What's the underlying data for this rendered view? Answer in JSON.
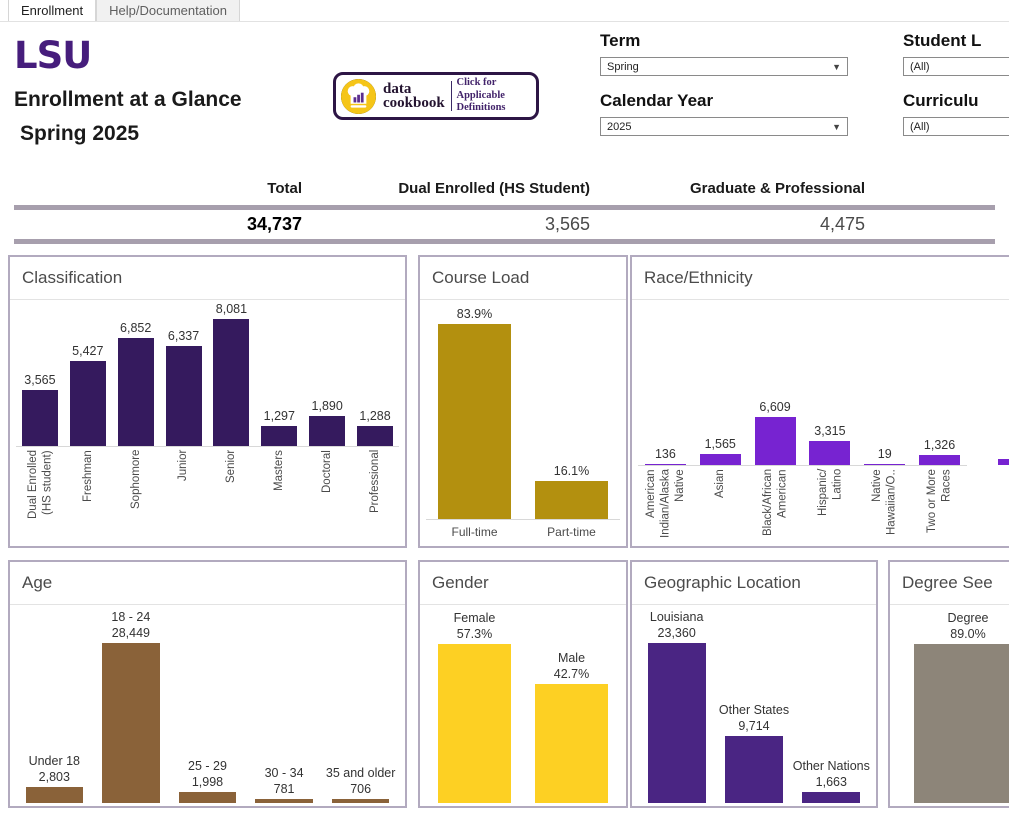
{
  "tabs": [
    {
      "label": "Enrollment",
      "active": true
    },
    {
      "label": "Help/Documentation",
      "active": false
    }
  ],
  "header": {
    "logo": "LSU",
    "title_line1": "Enrollment at a Glance",
    "title_line2": "Spring 2025",
    "cookbook_badge": {
      "brand": "data\ncookbook",
      "caption": "Click for Applicable\nDefinitions"
    }
  },
  "filters": [
    {
      "label": "Term",
      "value": "Spring"
    },
    {
      "label": "Calendar Year",
      "value": "2025"
    },
    {
      "label": "Student L",
      "value": "(All)"
    },
    {
      "label": "Curriculu",
      "value": "(All)"
    }
  ],
  "summary": {
    "columns": [
      {
        "header": "Total",
        "value": "34,737"
      },
      {
        "header": "Dual Enrolled (HS Student)",
        "value": "3,565"
      },
      {
        "header": "Graduate & Professional",
        "value": "4,475"
      }
    ]
  },
  "colors": {
    "lsu_purple": "#461D7C",
    "panel_border": "#b2aabf",
    "summary_rule": "#a79fad"
  },
  "chart_data": [
    {
      "id": "classification",
      "title": "Classification",
      "type": "bar",
      "bar_color": "#351A5E",
      "label_mode": "below-rotated",
      "ylim": [
        0,
        9290
      ],
      "legend": "none",
      "categories": [
        "Dual Enrolled\n(HS student)",
        "Freshman",
        "Sophomore",
        "Junior",
        "Senior",
        "Masters",
        "Doctoral",
        "Professional"
      ],
      "values": [
        3565,
        5427,
        6852,
        6337,
        8081,
        1297,
        1890,
        1288
      ],
      "value_labels": [
        "3,565",
        "5,427",
        "6,852",
        "6,337",
        "8,081",
        "1,297",
        "1,890",
        "1,288"
      ]
    },
    {
      "id": "course_load",
      "title": "Course Load",
      "type": "bar",
      "bar_color": "#B3900F",
      "label_mode": "below-flat",
      "ylim": [
        0,
        94
      ],
      "legend": "none",
      "categories": [
        "Full-time",
        "Part-time"
      ],
      "values": [
        83.9,
        16.1
      ],
      "value_labels": [
        "83.9%",
        "16.1%"
      ]
    },
    {
      "id": "race_ethnicity",
      "title": "Race/Ethnicity",
      "type": "bar",
      "bar_color": "#7723D1",
      "label_mode": "below-rotated",
      "ylim": [
        0,
        22700
      ],
      "legend": "none",
      "partial_bar_at_right_edge": true,
      "categories": [
        "American\nIndian/Alaska\nNative",
        "Asian",
        "Black/African\nAmerican",
        "Hispanic/\nLatino",
        "Native\nHawaiian/O..",
        "Two or More\nRaces"
      ],
      "values": [
        136,
        1565,
        6609,
        3315,
        19,
        1326
      ],
      "value_labels": [
        "136",
        "1,565",
        "6,609",
        "3,315",
        "19",
        "1,326"
      ]
    },
    {
      "id": "age",
      "title": "Age",
      "type": "bar",
      "bar_color": "#8A6239",
      "label_mode": "above",
      "ylim": [
        0,
        35200
      ],
      "legend": "none",
      "categories": [
        "Under 18",
        "18 - 24",
        "25 - 29",
        "30 - 34",
        "35 and older"
      ],
      "values": [
        2803,
        28449,
        1998,
        781,
        706
      ],
      "value_labels": [
        "2,803",
        "28,449",
        "1,998",
        "781",
        "706"
      ]
    },
    {
      "id": "gender",
      "title": "Gender",
      "type": "bar",
      "bar_color": "#FDD023",
      "label_mode": "above",
      "ylim": [
        0,
        71.3
      ],
      "legend": "none",
      "categories": [
        "Female",
        "Male"
      ],
      "values": [
        57.3,
        42.7
      ],
      "value_labels": [
        "57.3%",
        "42.7%"
      ]
    },
    {
      "id": "geographic_location",
      "title": "Geographic Location",
      "type": "bar",
      "bar_color": "#4A2583",
      "label_mode": "above",
      "ylim": [
        0,
        28900
      ],
      "legend": "none",
      "categories": [
        "Louisiana",
        "Other States",
        "Other Nations"
      ],
      "values": [
        23360,
        9714,
        1663
      ],
      "value_labels": [
        "23,360",
        "9,714",
        "1,663"
      ]
    },
    {
      "id": "degree_seeking",
      "title": "Degree See",
      "type": "bar",
      "bar_color": "#8D8579",
      "label_mode": "above",
      "ylim": [
        0,
        111
      ],
      "legend": "none",
      "categories": [
        "Degree"
      ],
      "values": [
        89.0
      ],
      "value_labels": [
        "89.0%"
      ]
    }
  ]
}
